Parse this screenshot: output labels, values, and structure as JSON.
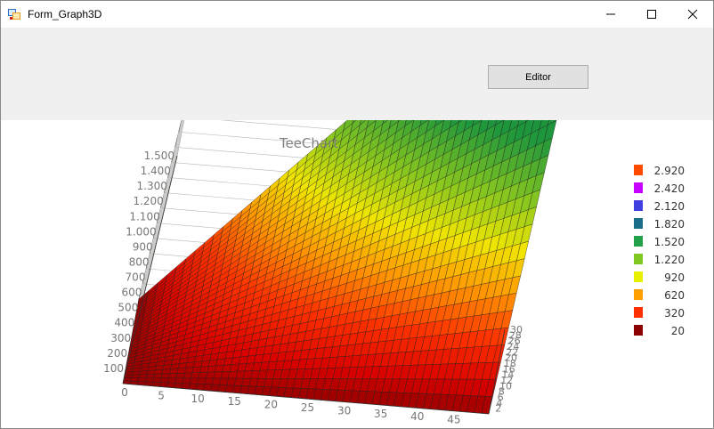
{
  "window": {
    "title": "Form_Graph3D",
    "minimize_glyph": "—",
    "maximize_glyph": "☐",
    "close_glyph": "✕"
  },
  "toolbar": {
    "editor_label": "Editor"
  },
  "chart_data": {
    "type": "surface3d",
    "title": "TeeChart",
    "y_ticks": [
      "100",
      "200",
      "300",
      "400",
      "500",
      "600",
      "700",
      "800",
      "900",
      "1.000",
      "1.100",
      "1.200",
      "1.300",
      "1.400",
      "1.500"
    ],
    "x_ticks": [
      "0",
      "5",
      "10",
      "15",
      "20",
      "25",
      "30",
      "35",
      "40",
      "45"
    ],
    "z_ticks": [
      "2",
      "4",
      "6",
      "8",
      "10",
      "12",
      "14",
      "16",
      "18",
      "20",
      "22",
      "24",
      "26",
      "28",
      "30"
    ],
    "x_range": [
      0,
      50
    ],
    "z_range": [
      0,
      30
    ],
    "y_range": [
      0,
      1500
    ],
    "legend": [
      {
        "label": "2.920",
        "color": "#ff4b00"
      },
      {
        "label": "2.420",
        "color": "#c800ff"
      },
      {
        "label": "2.120",
        "color": "#4040e0"
      },
      {
        "label": "1.820",
        "color": "#1a6e8a"
      },
      {
        "label": "1.520",
        "color": "#22a04a"
      },
      {
        "label": "1.220",
        "color": "#80c820"
      },
      {
        "label": "920",
        "color": "#e8f000"
      },
      {
        "label": "620",
        "color": "#ffa000"
      },
      {
        "label": "320",
        "color": "#ff3000"
      },
      {
        "label": "20",
        "color": "#8b0000"
      }
    ],
    "legend_position": "right",
    "wall_color": "#ffffe0"
  }
}
